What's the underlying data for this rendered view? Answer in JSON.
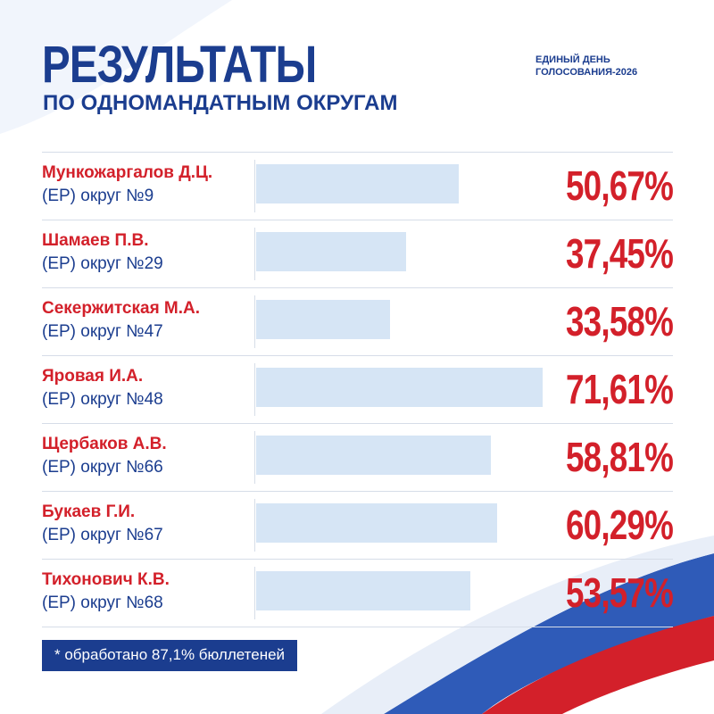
{
  "header": {
    "title": "РЕЗУЛЬТАТЫ",
    "subtitle": "ПО ОДНОМАНДАТНЫМ ОКРУГАМ",
    "badge_line1": "ЕДИНЫЙ ДЕНЬ",
    "badge_line2": "ГОЛОСОВАНИЯ-2026"
  },
  "colors": {
    "accent_red": "#d3202a",
    "brand_blue": "#1b3d8f",
    "bar_fill": "#d6e5f5"
  },
  "chart_data": {
    "type": "bar",
    "orientation": "horizontal",
    "title": "РЕЗУЛЬТАТЫ",
    "subtitle": "ПО ОДНОМАНДАТНЫМ ОКРУГАМ",
    "xlim": [
      0,
      100
    ],
    "grid": false,
    "rows": [
      {
        "name": "Мункожаргалов Д.Ц.",
        "district": "(ЕР) округ №9",
        "value": 50.67,
        "label": "50,67%"
      },
      {
        "name": "Шамаев П.В.",
        "district": "(ЕР) округ №29",
        "value": 37.45,
        "label": "37,45%"
      },
      {
        "name": "Секержитская М.А.",
        "district": "(ЕР) округ №47",
        "value": 33.58,
        "label": "33,58%"
      },
      {
        "name": "Яровая И.А.",
        "district": "(ЕР) округ №48",
        "value": 71.61,
        "label": "71,61%"
      },
      {
        "name": "Щербаков А.В.",
        "district": "(ЕР) округ №66",
        "value": 58.81,
        "label": "58,81%"
      },
      {
        "name": "Букаев Г.И.",
        "district": "(ЕР) округ №67",
        "value": 60.29,
        "label": "60,29%"
      },
      {
        "name": "Тихонович К.В.",
        "district": "(ЕР) округ №68",
        "value": 53.57,
        "label": "53,57%"
      }
    ]
  },
  "footer": {
    "note": "* обработано 87,1% бюллетеней"
  }
}
